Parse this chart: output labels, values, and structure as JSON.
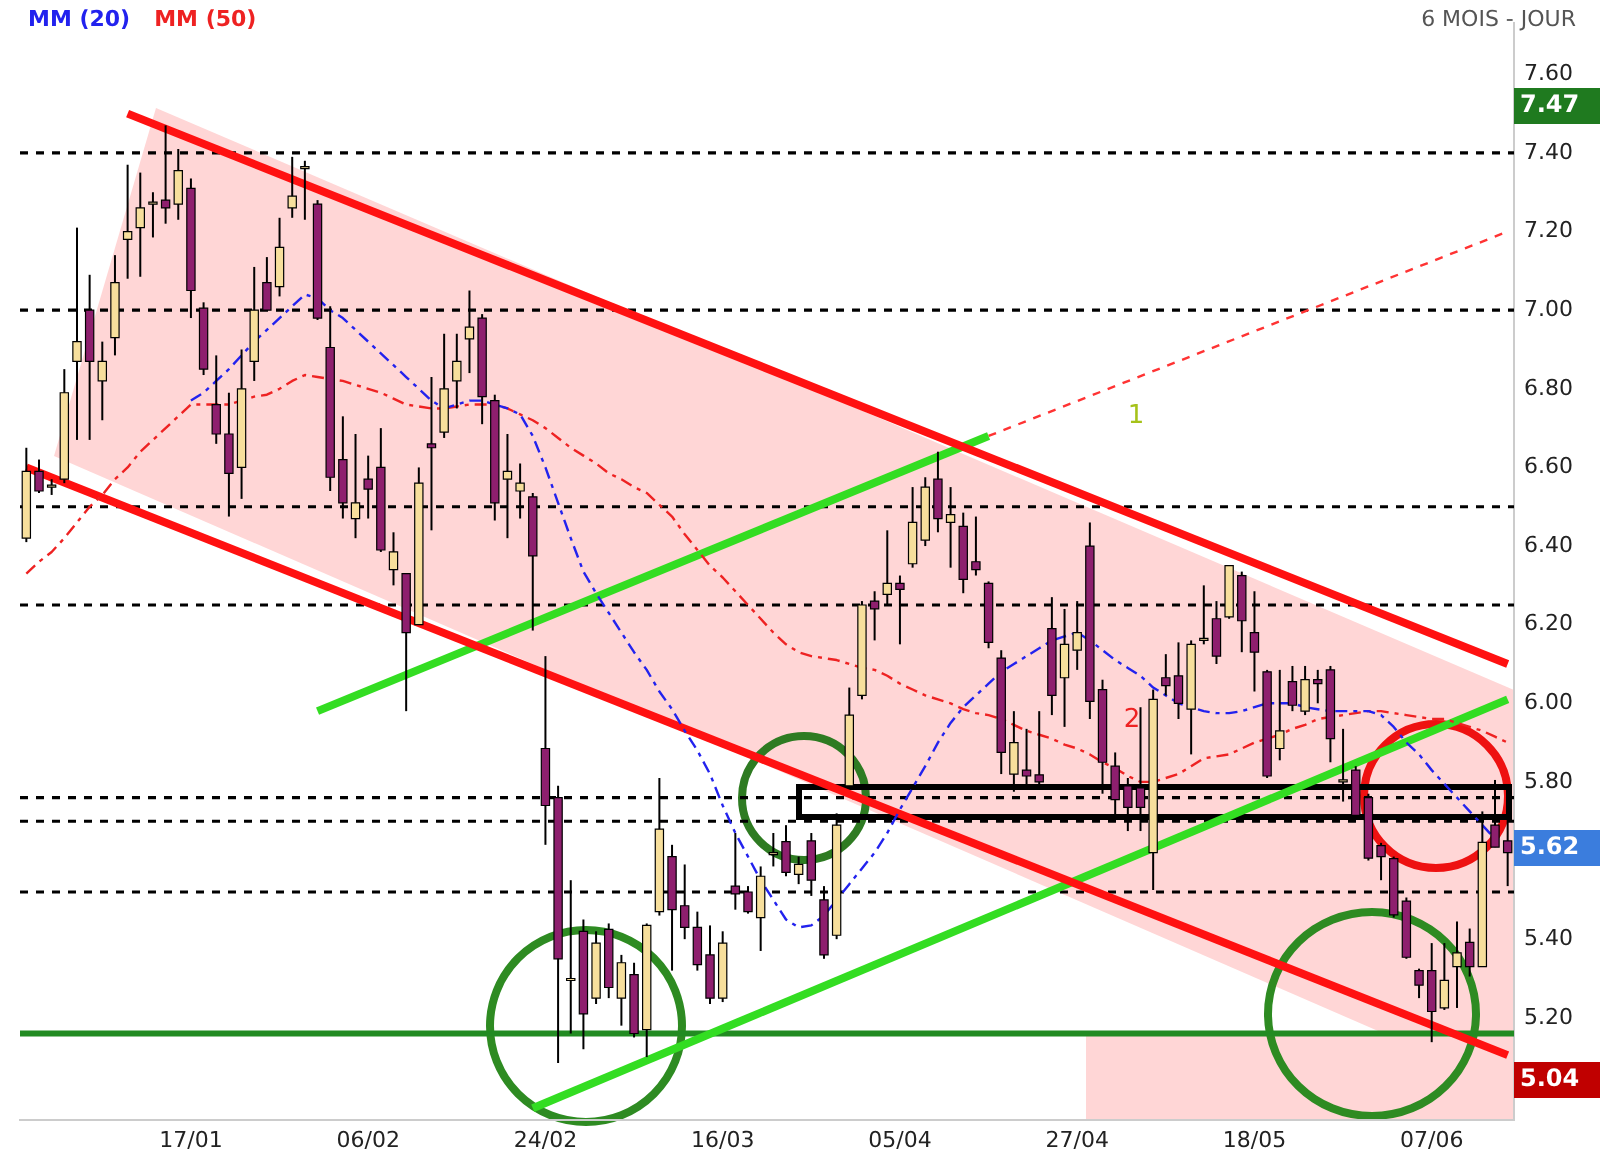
{
  "chart_data": {
    "type": "candlestick",
    "subtitle": "6 MOIS - JOUR",
    "categories": [
      null,
      null,
      null,
      null,
      null,
      null,
      null,
      null,
      null,
      null,
      null,
      null,
      null,
      "17/01",
      null,
      null,
      null,
      null,
      null,
      null,
      null,
      null,
      null,
      null,
      null,
      null,
      null,
      "06/02",
      null,
      null,
      null,
      null,
      null,
      null,
      null,
      null,
      null,
      null,
      null,
      null,
      null,
      "24/02",
      null,
      null,
      null,
      null,
      null,
      null,
      null,
      null,
      null,
      null,
      null,
      null,
      null,
      "16/03",
      null,
      null,
      null,
      null,
      null,
      null,
      null,
      null,
      null,
      null,
      null,
      null,
      null,
      "05/04",
      null,
      null,
      null,
      null,
      null,
      null,
      null,
      null,
      null,
      null,
      null,
      null,
      null,
      "27/04",
      null,
      null,
      null,
      null,
      null,
      null,
      null,
      null,
      null,
      null,
      null,
      null,
      null,
      "18/05",
      null,
      null,
      null,
      null,
      null,
      null,
      null,
      null,
      null,
      null,
      null,
      null,
      null,
      "07/06",
      null,
      null,
      null,
      null,
      null,
      null
    ],
    "ohlc": [
      [
        6.42,
        6.65,
        6.41,
        6.59
      ],
      [
        6.59,
        6.62,
        6.535,
        6.54
      ],
      [
        6.55,
        6.57,
        6.53,
        6.555
      ],
      [
        6.57,
        6.85,
        6.56,
        6.79
      ],
      [
        6.87,
        7.21,
        6.67,
        6.92
      ],
      [
        7.0,
        7.09,
        6.67,
        6.87
      ],
      [
        6.82,
        6.92,
        6.72,
        6.87
      ],
      [
        6.93,
        7.14,
        6.885,
        7.07
      ],
      [
        7.18,
        7.37,
        7.08,
        7.2
      ],
      [
        7.21,
        7.35,
        7.085,
        7.26
      ],
      [
        7.27,
        7.3,
        7.185,
        7.275
      ],
      [
        7.28,
        7.47,
        7.22,
        7.26
      ],
      [
        7.27,
        7.41,
        7.23,
        7.355
      ],
      [
        7.31,
        7.335,
        6.98,
        7.05
      ],
      [
        7.005,
        7.02,
        6.835,
        6.85
      ],
      [
        6.76,
        6.885,
        6.66,
        6.685
      ],
      [
        6.685,
        6.79,
        6.475,
        6.585
      ],
      [
        6.6,
        6.9,
        6.52,
        6.8
      ],
      [
        6.87,
        7.11,
        6.82,
        7.0
      ],
      [
        7.07,
        7.135,
        6.998,
        7.0
      ],
      [
        7.06,
        7.235,
        7.035,
        7.16
      ],
      [
        7.26,
        7.39,
        7.235,
        7.29
      ],
      [
        7.36,
        7.38,
        7.23,
        7.365
      ],
      [
        7.27,
        7.28,
        6.975,
        6.98
      ],
      [
        6.905,
        7.01,
        6.54,
        6.575
      ],
      [
        6.62,
        6.73,
        6.47,
        6.51
      ],
      [
        6.47,
        6.685,
        6.42,
        6.51
      ],
      [
        6.57,
        6.63,
        6.47,
        6.545
      ],
      [
        6.6,
        6.7,
        6.385,
        6.39
      ],
      [
        6.34,
        6.435,
        6.3,
        6.385
      ],
      [
        6.33,
        6.33,
        5.98,
        6.18
      ],
      [
        6.2,
        6.6,
        6.2,
        6.56
      ],
      [
        6.66,
        6.83,
        6.44,
        6.65
      ],
      [
        6.69,
        6.94,
        6.675,
        6.8
      ],
      [
        6.82,
        6.94,
        6.75,
        6.87
      ],
      [
        6.927,
        7.05,
        6.84,
        6.957
      ],
      [
        6.98,
        6.99,
        6.71,
        6.78
      ],
      [
        6.77,
        6.785,
        6.465,
        6.51
      ],
      [
        6.57,
        6.685,
        6.42,
        6.59
      ],
      [
        6.54,
        6.61,
        6.47,
        6.56
      ],
      [
        6.525,
        6.535,
        6.185,
        6.375
      ],
      [
        5.885,
        6.12,
        5.64,
        5.74
      ],
      [
        5.76,
        5.79,
        5.085,
        5.35
      ],
      [
        5.3,
        5.55,
        5.16,
        5.3
      ],
      [
        5.42,
        5.45,
        5.12,
        5.21
      ],
      [
        5.25,
        5.42,
        5.235,
        5.39
      ],
      [
        5.425,
        5.44,
        5.25,
        5.277
      ],
      [
        5.25,
        5.36,
        5.18,
        5.34
      ],
      [
        5.31,
        5.34,
        5.15,
        5.16
      ],
      [
        5.17,
        5.44,
        5.1,
        5.435
      ],
      [
        5.47,
        5.81,
        5.46,
        5.68
      ],
      [
        5.61,
        5.64,
        5.32,
        5.475
      ],
      [
        5.485,
        5.59,
        5.4,
        5.43
      ],
      [
        5.43,
        5.47,
        5.32,
        5.335
      ],
      [
        5.36,
        5.435,
        5.235,
        5.25
      ],
      [
        5.25,
        5.42,
        5.24,
        5.39
      ],
      [
        5.535,
        5.67,
        5.475,
        5.515
      ],
      [
        5.52,
        5.535,
        5.465,
        5.47
      ],
      [
        5.455,
        5.585,
        5.37,
        5.56
      ],
      [
        5.615,
        5.67,
        5.585,
        5.62
      ],
      [
        5.648,
        5.69,
        5.56,
        5.57
      ],
      [
        5.565,
        5.61,
        5.54,
        5.59
      ],
      [
        5.65,
        5.67,
        5.51,
        5.55
      ],
      [
        5.5,
        5.535,
        5.35,
        5.36
      ],
      [
        5.41,
        5.72,
        5.4,
        5.69
      ],
      [
        5.79,
        6.04,
        5.785,
        5.97
      ],
      [
        6.02,
        6.26,
        6.01,
        6.25
      ],
      [
        6.26,
        6.285,
        6.16,
        6.24
      ],
      [
        6.277,
        6.44,
        6.25,
        6.305
      ],
      [
        6.305,
        6.325,
        6.15,
        6.29
      ],
      [
        6.355,
        6.55,
        6.345,
        6.46
      ],
      [
        6.415,
        6.575,
        6.4,
        6.55
      ],
      [
        6.57,
        6.64,
        6.435,
        6.47
      ],
      [
        6.46,
        6.55,
        6.345,
        6.48
      ],
      [
        6.45,
        6.485,
        6.28,
        6.315
      ],
      [
        6.36,
        6.475,
        6.325,
        6.34
      ],
      [
        6.305,
        6.31,
        6.14,
        6.155
      ],
      [
        6.115,
        6.135,
        5.82,
        5.875
      ],
      [
        5.82,
        5.98,
        5.775,
        5.9
      ],
      [
        5.83,
        5.935,
        5.79,
        5.815
      ],
      [
        5.818,
        5.98,
        5.785,
        5.8
      ],
      [
        6.19,
        6.27,
        5.97,
        6.02
      ],
      [
        6.065,
        6.24,
        5.94,
        6.15
      ],
      [
        6.135,
        6.26,
        6.085,
        6.18
      ],
      [
        6.4,
        6.46,
        5.96,
        6.005
      ],
      [
        6.035,
        6.06,
        5.77,
        5.85
      ],
      [
        5.84,
        5.875,
        5.715,
        5.755
      ],
      [
        5.79,
        5.81,
        5.675,
        5.735
      ],
      [
        5.785,
        5.99,
        5.675,
        5.735
      ],
      [
        5.62,
        6.035,
        5.525,
        6.01
      ],
      [
        6.065,
        6.125,
        6.02,
        6.045
      ],
      [
        6.07,
        6.155,
        5.96,
        6.0
      ],
      [
        5.985,
        6.16,
        5.87,
        6.15
      ],
      [
        6.16,
        6.3,
        6.15,
        6.165
      ],
      [
        6.215,
        6.26,
        6.1,
        6.12
      ],
      [
        6.22,
        6.35,
        6.215,
        6.35
      ],
      [
        6.325,
        6.335,
        6.13,
        6.21
      ],
      [
        6.18,
        6.285,
        6.03,
        6.13
      ],
      [
        6.08,
        6.085,
        5.81,
        5.815
      ],
      [
        5.885,
        6.085,
        5.855,
        5.93
      ],
      [
        6.055,
        6.095,
        5.98,
        5.995
      ],
      [
        5.98,
        6.095,
        5.97,
        6.06
      ],
      [
        6.06,
        6.085,
        6.0,
        6.05
      ],
      [
        6.085,
        6.095,
        5.85,
        5.91
      ],
      [
        5.8,
        5.935,
        5.75,
        5.805
      ],
      [
        5.83,
        5.84,
        5.715,
        5.715
      ],
      [
        5.76,
        5.77,
        5.6,
        5.606
      ],
      [
        5.638,
        5.645,
        5.55,
        5.61
      ],
      [
        5.605,
        5.61,
        5.455,
        5.462
      ],
      [
        5.497,
        5.506,
        5.35,
        5.354
      ],
      [
        5.32,
        5.325,
        5.25,
        5.283
      ],
      [
        5.32,
        5.39,
        5.138,
        5.216
      ],
      [
        5.225,
        5.39,
        5.22,
        5.295
      ],
      [
        5.33,
        5.445,
        5.225,
        5.365
      ],
      [
        5.392,
        5.427,
        5.305,
        5.33
      ],
      [
        5.33,
        5.725,
        5.33,
        5.646
      ],
      [
        5.69,
        5.805,
        5.634,
        5.634
      ],
      [
        5.65,
        5.725,
        5.535,
        5.62
      ]
    ],
    "series": [
      {
        "name": "MM (20)",
        "type": "line",
        "color": "#2222ee",
        "line_style": "dashed",
        "values": [
          null,
          null,
          null,
          null,
          null,
          null,
          null,
          null,
          null,
          null,
          null,
          null,
          null,
          6.77,
          6.79,
          6.82,
          6.85,
          6.885,
          6.92,
          6.95,
          6.98,
          7.01,
          7.04,
          7.03,
          7.0,
          6.98,
          6.95,
          6.92,
          6.89,
          6.86,
          6.83,
          6.8,
          6.77,
          6.75,
          6.76,
          6.77,
          6.77,
          6.76,
          6.75,
          6.735,
          6.68,
          6.6,
          6.51,
          6.42,
          6.335,
          6.28,
          6.23,
          6.18,
          6.13,
          6.085,
          6.03,
          5.985,
          5.93,
          5.88,
          5.82,
          5.74,
          5.67,
          5.61,
          5.55,
          5.5,
          5.45,
          5.43,
          5.435,
          5.46,
          5.5,
          5.54,
          5.58,
          5.62,
          5.67,
          5.73,
          5.785,
          5.84,
          5.9,
          5.95,
          5.99,
          6.02,
          6.05,
          6.08,
          6.1,
          6.12,
          6.14,
          6.16,
          6.17,
          6.18,
          6.16,
          6.135,
          6.11,
          6.09,
          6.07,
          6.04,
          6.02,
          6.0,
          5.99,
          5.98,
          5.975,
          5.975,
          5.98,
          5.99,
          6.0,
          6.0,
          6.0,
          5.99,
          5.985,
          5.98,
          5.98,
          5.98,
          5.98,
          5.97,
          5.94,
          5.9,
          5.87,
          5.83,
          5.795,
          5.76,
          5.725,
          5.69,
          5.655,
          null
        ]
      },
      {
        "name": "MM (50)",
        "type": "line",
        "color": "#ee2222",
        "line_style": "dashed",
        "values": [
          6.33,
          6.36,
          6.385,
          6.42,
          6.46,
          6.5,
          6.53,
          6.57,
          6.6,
          6.64,
          6.67,
          6.7,
          6.73,
          6.76,
          6.76,
          6.76,
          6.76,
          6.77,
          6.78,
          6.785,
          6.8,
          6.82,
          6.835,
          6.83,
          6.825,
          6.82,
          6.81,
          6.8,
          6.79,
          6.775,
          6.76,
          6.755,
          6.75,
          6.75,
          6.755,
          6.76,
          6.76,
          6.76,
          6.75,
          6.735,
          6.72,
          6.7,
          6.675,
          6.65,
          6.63,
          6.61,
          6.585,
          6.57,
          6.55,
          6.535,
          6.505,
          6.475,
          6.43,
          6.39,
          6.35,
          6.32,
          6.285,
          6.25,
          6.215,
          6.18,
          6.15,
          6.13,
          6.12,
          6.115,
          6.11,
          6.1,
          6.09,
          6.085,
          6.07,
          6.05,
          6.035,
          6.02,
          6.01,
          6.0,
          5.985,
          5.975,
          5.97,
          5.96,
          5.945,
          5.93,
          5.92,
          5.91,
          5.895,
          5.885,
          5.87,
          5.85,
          5.835,
          5.815,
          5.8,
          5.8,
          5.81,
          5.82,
          5.84,
          5.86,
          5.865,
          5.87,
          5.885,
          5.9,
          5.91,
          5.92,
          5.935,
          5.945,
          5.96,
          5.965,
          5.97,
          5.975,
          5.98,
          5.98,
          5.975,
          5.97,
          5.965,
          5.96,
          5.96,
          5.95,
          5.94,
          5.93,
          5.915,
          5.9
        ]
      },
      {
        "type": "line",
        "color": "#ff1111",
        "line_style": "solid",
        "values": [
          null,
          null,
          null,
          null,
          null,
          null,
          null,
          null,
          7.5,
          null,
          null,
          null,
          null,
          null,
          null,
          null,
          null,
          null,
          null,
          null,
          null,
          null,
          null,
          null,
          null,
          null,
          null,
          null,
          null,
          null,
          null,
          null,
          null,
          null,
          null,
          null,
          null,
          null,
          null,
          null,
          null,
          null,
          null,
          null,
          null,
          null,
          null,
          null,
          null,
          null,
          null,
          null,
          null,
          null,
          null,
          null,
          null,
          null,
          null,
          null,
          null,
          null,
          null,
          null,
          null,
          null,
          null,
          null,
          null,
          null,
          null,
          null,
          null,
          null,
          null,
          null,
          null,
          null,
          null,
          null,
          null,
          null,
          null,
          null,
          null,
          null,
          null,
          null,
          null,
          null,
          null,
          null,
          null,
          null,
          null,
          null,
          null,
          null,
          null,
          null,
          null,
          null,
          null,
          null,
          null,
          null,
          null,
          null,
          null,
          null,
          null,
          null,
          null,
          null,
          null,
          null,
          null,
          6.1
        ]
      },
      {
        "type": "line",
        "color": "#ff1111",
        "line_style": "solid",
        "values": [
          6.6,
          null,
          null,
          null,
          null,
          null,
          null,
          null,
          null,
          null,
          null,
          null,
          null,
          null,
          null,
          null,
          null,
          null,
          null,
          null,
          null,
          null,
          null,
          null,
          null,
          null,
          null,
          null,
          null,
          null,
          null,
          null,
          null,
          null,
          null,
          null,
          null,
          null,
          null,
          null,
          null,
          null,
          null,
          null,
          null,
          null,
          null,
          null,
          null,
          null,
          null,
          null,
          null,
          null,
          null,
          null,
          null,
          null,
          null,
          null,
          null,
          null,
          null,
          null,
          null,
          null,
          null,
          null,
          null,
          null,
          null,
          null,
          null,
          null,
          null,
          null,
          null,
          null,
          null,
          null,
          null,
          null,
          null,
          null,
          null,
          null,
          null,
          null,
          null,
          null,
          null,
          null,
          null,
          null,
          null,
          null,
          null,
          null,
          null,
          null,
          null,
          null,
          null,
          null,
          null,
          null,
          null,
          null,
          null,
          null,
          null,
          null,
          null,
          null,
          null,
          null,
          null,
          5.105
        ]
      },
      {
        "type": "line",
        "color": "#33dd22",
        "line_style": "solid",
        "values": [
          null,
          null,
          null,
          null,
          null,
          null,
          null,
          null,
          null,
          null,
          null,
          null,
          null,
          null,
          null,
          null,
          null,
          null,
          null,
          null,
          null,
          null,
          null,
          null,
          null,
          null,
          null,
          null,
          null,
          null,
          null,
          null,
          null,
          null,
          null,
          null,
          null,
          null,
          null,
          null,
          4.97,
          null,
          null,
          null,
          null,
          null,
          null,
          null,
          null,
          null,
          null,
          null,
          null,
          null,
          null,
          null,
          null,
          null,
          null,
          null,
          null,
          null,
          null,
          null,
          null,
          null,
          null,
          null,
          null,
          null,
          null,
          null,
          null,
          null,
          null,
          null,
          null,
          null,
          null,
          null,
          null,
          null,
          null,
          null,
          null,
          null,
          null,
          null,
          null,
          null,
          null,
          null,
          null,
          null,
          null,
          null,
          null,
          null,
          null,
          null,
          null,
          null,
          null,
          null,
          null,
          null,
          null,
          null,
          null,
          null,
          null,
          null,
          null,
          null,
          null,
          null,
          null,
          6.01
        ]
      },
      {
        "type": "line",
        "color": "#33dd22",
        "line_style": "solid",
        "values": [
          null,
          null,
          null,
          null,
          null,
          null,
          null,
          null,
          null,
          null,
          null,
          null,
          null,
          null,
          null,
          null,
          null,
          null,
          null,
          null,
          null,
          null,
          null,
          5.98,
          null,
          null,
          null,
          null,
          null,
          null,
          null,
          null,
          null,
          null,
          null,
          null,
          null,
          null,
          null,
          null,
          null,
          null,
          null,
          null,
          null,
          null,
          null,
          null,
          null,
          null,
          null,
          null,
          null,
          null,
          null,
          null,
          null,
          null,
          null,
          null,
          null,
          null,
          null,
          null,
          null,
          null,
          null,
          null,
          null,
          null,
          null,
          null,
          null,
          null,
          null,
          null,
          6.68,
          null,
          null,
          null,
          null,
          null,
          null,
          null,
          null,
          null,
          null,
          null,
          null,
          null,
          null,
          null,
          null,
          null,
          null,
          null,
          null,
          null,
          null,
          null,
          null,
          null,
          null,
          null,
          null,
          null,
          null,
          null,
          null,
          null,
          null,
          null,
          null,
          null,
          null,
          null,
          null,
          null
        ]
      },
      {
        "type": "line",
        "color": "#ff3333",
        "line_style": "dotted",
        "values": [
          null,
          null,
          null,
          null,
          null,
          null,
          null,
          null,
          null,
          null,
          null,
          null,
          null,
          null,
          null,
          null,
          null,
          null,
          null,
          null,
          null,
          null,
          null,
          null,
          null,
          null,
          null,
          null,
          null,
          null,
          null,
          null,
          null,
          null,
          null,
          null,
          null,
          null,
          null,
          null,
          null,
          null,
          null,
          null,
          null,
          null,
          null,
          null,
          null,
          null,
          null,
          null,
          null,
          null,
          null,
          null,
          null,
          null,
          null,
          null,
          null,
          null,
          null,
          null,
          null,
          null,
          null,
          null,
          null,
          null,
          null,
          null,
          null,
          null,
          null,
          null,
          6.68,
          null,
          null,
          null,
          null,
          null,
          null,
          null,
          null,
          null,
          null,
          null,
          null,
          null,
          null,
          null,
          null,
          null,
          null,
          null,
          null,
          null,
          null,
          null,
          null,
          null,
          null,
          null,
          null,
          null,
          null,
          null,
          null,
          null,
          null,
          null,
          null,
          null,
          null,
          null,
          null,
          7.2
        ]
      }
    ],
    "ref_lines": [
      {
        "axis": "y",
        "value": 7.4,
        "color": "#000000",
        "line_style": "dashed"
      },
      {
        "axis": "y",
        "value": 7.0,
        "color": "#000000",
        "line_style": "dashed"
      },
      {
        "axis": "y",
        "value": 6.5,
        "color": "#000000",
        "line_style": "dashed"
      },
      {
        "axis": "y",
        "value": 6.25,
        "color": "#000000",
        "line_style": "dashed"
      },
      {
        "axis": "y",
        "value": 5.76,
        "color": "#000000",
        "line_style": "dashed"
      },
      {
        "axis": "y",
        "value": 5.7,
        "color": "#000000",
        "line_style": "dashed"
      },
      {
        "axis": "y",
        "value": 5.52,
        "color": "#000000",
        "line_style": "dashed"
      },
      {
        "axis": "y",
        "value": 5.16,
        "color": "#228b22",
        "line_style": "solid"
      }
    ],
    "annotations": [
      "7.47",
      "5.62",
      "5.04",
      "1",
      "2"
    ],
    "ylim": [
      4.94,
      7.73
    ],
    "yticks": [
      {
        "value": 5.2,
        "label": "5.20"
      },
      {
        "value": 5.4,
        "label": "5.40"
      },
      {
        "value": 5.8,
        "label": "5.80"
      },
      {
        "value": 6.0,
        "label": "6.00"
      },
      {
        "value": 6.2,
        "label": "6.20"
      },
      {
        "value": 6.4,
        "label": "6.40"
      },
      {
        "value": 6.6,
        "label": "6.60"
      },
      {
        "value": 6.8,
        "label": "6.80"
      },
      {
        "value": 7.0,
        "label": "7.00"
      },
      {
        "value": 7.2,
        "label": "7.20"
      },
      {
        "value": 7.4,
        "label": "7.40"
      },
      {
        "value": 7.6,
        "label": "7.60"
      }
    ],
    "grid": false,
    "legend": "top left",
    "marker": "none"
  }
}
